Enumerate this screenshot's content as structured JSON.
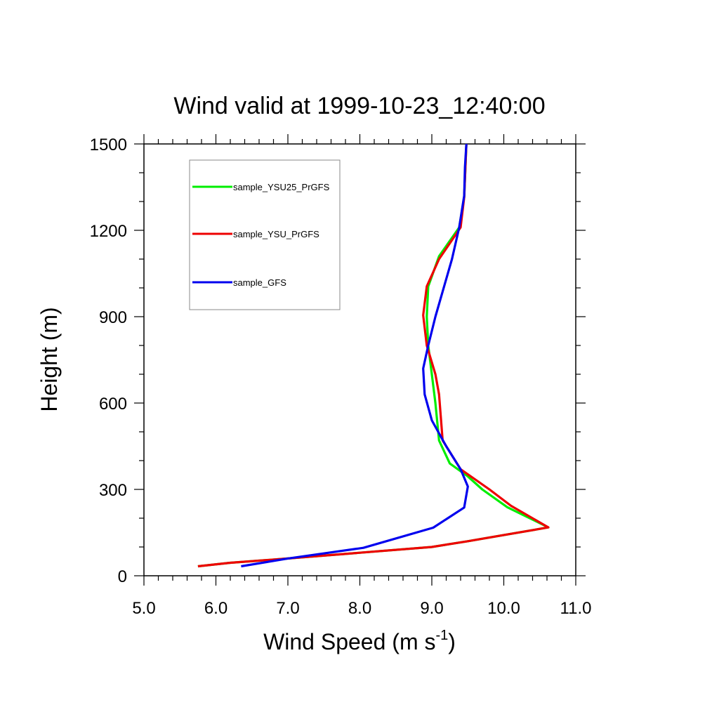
{
  "chart_data": {
    "type": "line",
    "title": "Wind valid at 1999-10-23_12:40:00",
    "xlabel": "Wind Speed (m s",
    "xlabel_sup": "-1",
    "xlabel_end": ")",
    "ylabel": "Height (m)",
    "xlim": [
      5.0,
      11.0
    ],
    "ylim": [
      0,
      1500
    ],
    "xticks": [
      {
        "value": 5.0,
        "label": "5.0"
      },
      {
        "value": 6.0,
        "label": "6.0"
      },
      {
        "value": 7.0,
        "label": "7.0"
      },
      {
        "value": 8.0,
        "label": "8.0"
      },
      {
        "value": 9.0,
        "label": "9.0"
      },
      {
        "value": 10.0,
        "label": "10.0"
      },
      {
        "value": 11.0,
        "label": "11.0"
      }
    ],
    "yticks": [
      {
        "value": 0,
        "label": "0"
      },
      {
        "value": 300,
        "label": "300"
      },
      {
        "value": 600,
        "label": "600"
      },
      {
        "value": 900,
        "label": "900"
      },
      {
        "value": 1200,
        "label": "1200"
      },
      {
        "value": 1500,
        "label": "1500"
      }
    ],
    "grid": false,
    "legend_position": "top-left",
    "series": [
      {
        "name": "sample_YSU25_PrGFS",
        "color": "#00ee00",
        "points": [
          [
            5.75,
            33
          ],
          [
            6.2,
            45
          ],
          [
            7.0,
            60
          ],
          [
            8.0,
            80
          ],
          [
            9.0,
            100
          ],
          [
            9.5,
            120
          ],
          [
            10.62,
            168
          ],
          [
            10.05,
            238
          ],
          [
            9.7,
            300
          ],
          [
            9.5,
            345
          ],
          [
            9.25,
            390
          ],
          [
            9.1,
            470
          ],
          [
            9.05,
            600
          ],
          [
            9.0,
            700
          ],
          [
            8.95,
            800
          ],
          [
            8.93,
            900
          ],
          [
            8.95,
            1005
          ],
          [
            9.1,
            1110
          ],
          [
            9.38,
            1210
          ],
          [
            9.45,
            1315
          ],
          [
            9.48,
            1500
          ]
        ]
      },
      {
        "name": "sample_YSU_PrGFS",
        "color": "#ee0000",
        "points": [
          [
            5.75,
            33
          ],
          [
            6.2,
            45
          ],
          [
            7.0,
            60
          ],
          [
            8.0,
            80
          ],
          [
            9.0,
            100
          ],
          [
            9.5,
            120
          ],
          [
            10.62,
            168
          ],
          [
            10.1,
            243
          ],
          [
            9.8,
            300
          ],
          [
            9.4,
            370
          ],
          [
            9.15,
            470
          ],
          [
            9.1,
            630
          ],
          [
            9.05,
            700
          ],
          [
            8.93,
            800
          ],
          [
            8.88,
            905
          ],
          [
            8.93,
            1005
          ],
          [
            9.1,
            1100
          ],
          [
            9.4,
            1210
          ],
          [
            9.45,
            1315
          ],
          [
            9.48,
            1500
          ]
        ]
      },
      {
        "name": "sample_GFS",
        "color": "#0000ee",
        "points": [
          [
            6.35,
            33
          ],
          [
            7.0,
            60
          ],
          [
            8.05,
            97
          ],
          [
            9.02,
            167
          ],
          [
            9.45,
            237
          ],
          [
            9.5,
            310
          ],
          [
            9.4,
            370
          ],
          [
            9.2,
            450
          ],
          [
            9.0,
            540
          ],
          [
            8.9,
            630
          ],
          [
            8.88,
            720
          ],
          [
            8.95,
            800
          ],
          [
            9.05,
            900
          ],
          [
            9.28,
            1100
          ],
          [
            9.38,
            1210
          ],
          [
            9.45,
            1320
          ],
          [
            9.46,
            1420
          ],
          [
            9.48,
            1500
          ]
        ]
      }
    ]
  }
}
